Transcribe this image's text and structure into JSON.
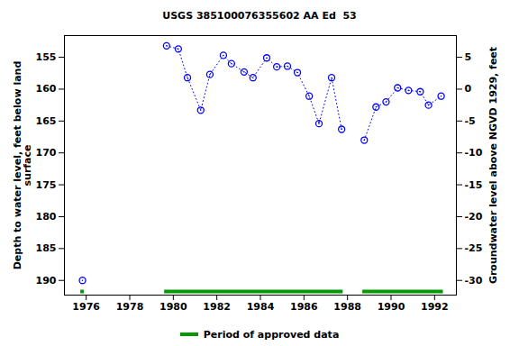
{
  "chart_data": {
    "type": "scatter",
    "title": "USGS 385100076355602 AA Ed  53",
    "x": [
      1975.83,
      null,
      1979.69,
      1980.23,
      1980.65,
      1981.26,
      1981.68,
      1982.3,
      1982.67,
      1983.25,
      1983.66,
      1984.29,
      1984.75,
      1985.24,
      1985.7,
      1986.24,
      1986.69,
      1987.27,
      1987.73,
      null,
      1988.77,
      1989.31,
      1989.77,
      1990.3,
      1990.8,
      1991.34,
      1991.72,
      1992.3
    ],
    "series": [
      {
        "values": [
          190.0,
          null,
          153.2,
          153.7,
          158.2,
          163.3,
          157.7,
          154.7,
          156.0,
          157.3,
          158.2,
          155.1,
          156.5,
          156.4,
          157.4,
          161.1,
          165.4,
          158.2,
          166.3,
          null,
          168.0,
          162.8,
          162.0,
          159.8,
          160.2,
          160.4,
          162.5,
          161.1
        ],
        "color": "#0000ff",
        "marker": "circle",
        "line_style": "dotted"
      }
    ],
    "approved_periods": {
      "name": "Period of approved data",
      "color": "#009900",
      "ranges": [
        [
          1975.75,
          1975.91
        ],
        [
          1979.6,
          1987.8
        ],
        [
          1988.7,
          1992.4
        ]
      ]
    },
    "ylabel": "Depth to water level, feet below land\nsurface",
    "y2label": "Groundwater level above NGVD 1929, feet",
    "xlim": [
      1975,
      1993
    ],
    "xticks": [
      1976,
      1978,
      1980,
      1982,
      1984,
      1986,
      1988,
      1990,
      1992
    ],
    "ylim": [
      192.3,
      151.6
    ],
    "yticks": [
      155,
      160,
      165,
      170,
      175,
      180,
      185,
      190
    ],
    "y2lim": [
      -32.3,
      8.4
    ],
    "y2ticks": [
      5,
      0,
      -5,
      -10,
      -15,
      -20,
      -25,
      -30
    ],
    "grid": false
  }
}
